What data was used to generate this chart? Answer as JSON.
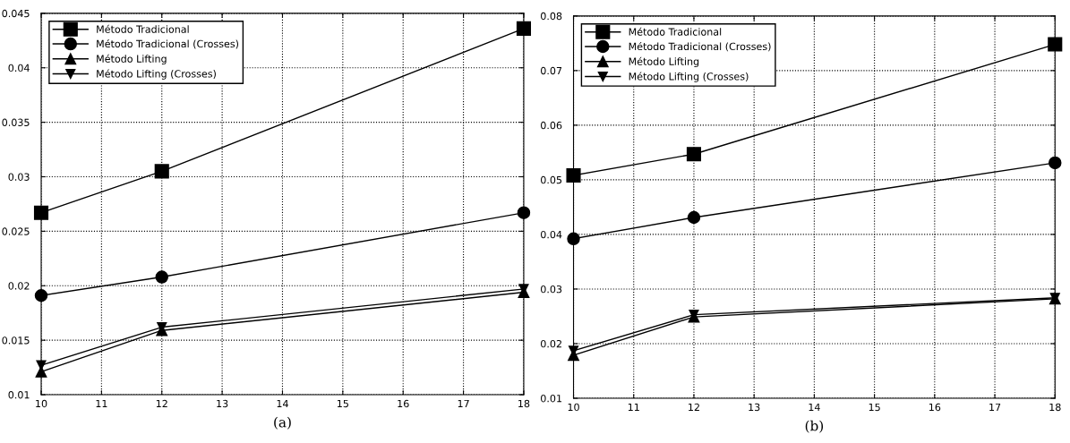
{
  "chart_data": [
    {
      "type": "line",
      "xlabel": "(a)",
      "x": [
        10,
        12,
        18
      ],
      "xlim": [
        10,
        18
      ],
      "xticks": [
        10,
        11,
        12,
        13,
        14,
        15,
        16,
        17,
        18
      ],
      "ylim": [
        0.01,
        0.045
      ],
      "yticks": [
        0.01,
        0.015,
        0.02,
        0.025,
        0.03,
        0.035,
        0.04,
        0.045
      ],
      "grid": true,
      "legend": "top left",
      "line_style": "solid",
      "series": [
        {
          "name": "Método Tradicional",
          "color": "#000000",
          "marker": "square",
          "values": [
            0.0267,
            0.0305,
            0.0436
          ]
        },
        {
          "name": "Método Tradicional (Crosses)",
          "color": "#000000",
          "marker": "circle",
          "values": [
            0.0191,
            0.0208,
            0.0267
          ]
        },
        {
          "name": "Método Lifting",
          "color": "#000000",
          "marker": "triangle",
          "values": [
            0.0121,
            0.0159,
            0.0194
          ]
        },
        {
          "name": "Método Lifting (Crosses)",
          "color": "#000000",
          "marker": "triangle_down",
          "values": [
            0.0127,
            0.0162,
            0.0197
          ]
        }
      ]
    },
    {
      "type": "line",
      "xlabel": "(b)",
      "x": [
        10,
        12,
        18
      ],
      "xlim": [
        10,
        18
      ],
      "xticks": [
        10,
        11,
        12,
        13,
        14,
        15,
        16,
        17,
        18
      ],
      "ylim": [
        0.01,
        0.08
      ],
      "yticks": [
        0.01,
        0.02,
        0.03,
        0.04,
        0.05,
        0.06,
        0.07,
        0.08
      ],
      "grid": true,
      "legend": "top left",
      "line_style": "solid",
      "series": [
        {
          "name": "Método Tradicional",
          "color": "#000000",
          "marker": "square",
          "values": [
            0.0508,
            0.0547,
            0.0748
          ]
        },
        {
          "name": "Método Tradicional (Crosses)",
          "color": "#000000",
          "marker": "circle",
          "values": [
            0.0392,
            0.0431,
            0.0531
          ]
        },
        {
          "name": "Método Lifting",
          "color": "#000000",
          "marker": "triangle",
          "values": [
            0.0179,
            0.0249,
            0.0282
          ]
        },
        {
          "name": "Método Lifting (Crosses)",
          "color": "#000000",
          "marker": "triangle_down",
          "values": [
            0.0187,
            0.0253,
            0.0284
          ]
        }
      ]
    }
  ]
}
